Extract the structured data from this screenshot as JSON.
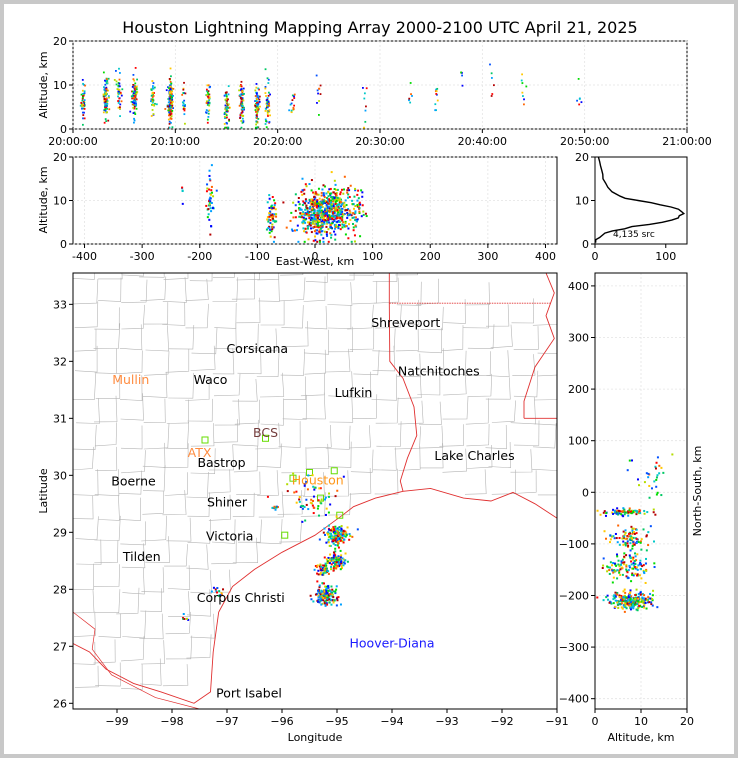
{
  "title": "Houston Lightning Mapping Array 2000-2100 UTC April 21, 2025",
  "colors": {
    "ramp": [
      "#0000ff",
      "#0050ff",
      "#00a0ff",
      "#00c8c8",
      "#00c864",
      "#00dc00",
      "#b4dc00",
      "#ffc800",
      "#ff6400",
      "#ff0000",
      "#b40000"
    ],
    "city": "#000000",
    "highlight_city": "#ff8c40",
    "radar_city": "#ff8c00",
    "buoy": "#1a1aff",
    "coast": "#e03030",
    "county": "#b4b4b4",
    "station": "#66dd00"
  },
  "chart_data": [
    {
      "id": "altitude-time",
      "type": "scatter",
      "ylabel": "Altitude, km",
      "ylim": [
        0,
        20
      ],
      "yticks": [
        "0",
        "10",
        "20"
      ],
      "xticks": [
        "20:00:00",
        "20:10:00",
        "20:20:00",
        "20:30:00",
        "20:40:00",
        "20:50:00",
        "21:00:00"
      ],
      "x_range_minutes": [
        0,
        60
      ],
      "clusters": [
        {
          "t": 1.0,
          "alt": 6.5,
          "n": 40
        },
        {
          "t": 3.2,
          "alt": 7.0,
          "n": 90
        },
        {
          "t": 4.5,
          "alt": 8.5,
          "n": 40
        },
        {
          "t": 6.0,
          "alt": 7.5,
          "n": 90
        },
        {
          "t": 7.8,
          "alt": 6.5,
          "n": 40
        },
        {
          "t": 9.5,
          "alt": 6.5,
          "n": 160
        },
        {
          "t": 10.8,
          "alt": 6.0,
          "n": 20
        },
        {
          "t": 13.2,
          "alt": 6.0,
          "n": 40
        },
        {
          "t": 15.0,
          "alt": 5.5,
          "n": 60
        },
        {
          "t": 16.5,
          "alt": 6.0,
          "n": 80
        },
        {
          "t": 18.0,
          "alt": 5.0,
          "n": 80
        },
        {
          "t": 19.0,
          "alt": 5.5,
          "n": 50
        },
        {
          "t": 21.5,
          "alt": 6.0,
          "n": 15
        },
        {
          "t": 24.0,
          "alt": 7.0,
          "n": 10
        },
        {
          "t": 28.5,
          "alt": 5.5,
          "n": 8
        },
        {
          "t": 33.0,
          "alt": 7.0,
          "n": 6
        },
        {
          "t": 35.5,
          "alt": 7.5,
          "n": 10
        },
        {
          "t": 38.0,
          "alt": 10.0,
          "n": 5
        },
        {
          "t": 41.0,
          "alt": 9.0,
          "n": 6
        },
        {
          "t": 44.0,
          "alt": 9.0,
          "n": 8
        },
        {
          "t": 49.5,
          "alt": 8.0,
          "n": 6
        }
      ]
    },
    {
      "id": "altitude-eastwest",
      "type": "scatter",
      "xlabel": "East-West, km",
      "ylabel": "Altitude, km",
      "xlim": [
        -420,
        420
      ],
      "ylim": [
        0,
        20
      ],
      "xticks": [
        "-400",
        "-300",
        "-200",
        "-100",
        "0",
        "100",
        "200",
        "300",
        "400"
      ],
      "yticks": [
        "0",
        "10",
        "20"
      ],
      "clusters": [
        {
          "x": 5,
          "alt": 7.0,
          "sx": 18,
          "n": 450
        },
        {
          "x": 40,
          "alt": 7.5,
          "sx": 12,
          "n": 220
        },
        {
          "x": 70,
          "alt": 8.0,
          "sx": 8,
          "n": 60
        },
        {
          "x": -75,
          "alt": 6.0,
          "sx": 4,
          "n": 60
        },
        {
          "x": -182,
          "alt": 10.0,
          "sx": 3,
          "n": 40
        },
        {
          "x": -230,
          "alt": 13.5,
          "sx": 2,
          "n": 5
        }
      ]
    },
    {
      "id": "altitude-histogram",
      "type": "line",
      "xlim": [
        0,
        130
      ],
      "ylim": [
        0,
        20
      ],
      "xticks": [
        "0",
        "100"
      ],
      "yticks": [
        "0",
        "10",
        "20"
      ],
      "source_count": "4,135 src",
      "profile": [
        [
          0.3,
          0
        ],
        [
          1.0,
          2
        ],
        [
          1.5,
          6
        ],
        [
          2.5,
          15
        ],
        [
          3.0,
          25
        ],
        [
          3.5,
          40
        ],
        [
          4.0,
          55
        ],
        [
          4.5,
          75
        ],
        [
          5.0,
          95
        ],
        [
          5.5,
          110
        ],
        [
          6.0,
          118
        ],
        [
          6.5,
          122
        ],
        [
          7.0,
          124
        ],
        [
          7.5,
          120
        ],
        [
          8.0,
          118
        ],
        [
          8.5,
          110
        ],
        [
          9.0,
          95
        ],
        [
          9.5,
          80
        ],
        [
          10.0,
          60
        ],
        [
          10.5,
          45
        ],
        [
          11.0,
          35
        ],
        [
          12.0,
          25
        ],
        [
          13.0,
          18
        ],
        [
          14.0,
          14
        ],
        [
          15.0,
          12
        ],
        [
          16.0,
          10
        ],
        [
          17.0,
          9
        ],
        [
          18.0,
          8
        ],
        [
          19.0,
          6
        ],
        [
          20.0,
          5
        ]
      ]
    },
    {
      "id": "plan-view",
      "type": "scatter",
      "xlabel": "Longitude",
      "ylabel": "Latitude",
      "xlim": [
        -99.8,
        -91.0
      ],
      "ylim": [
        25.9,
        33.55
      ],
      "xticks": [
        "−99",
        "−98",
        "−97",
        "−96",
        "−95",
        "−94",
        "−93",
        "−92",
        "−91"
      ],
      "yticks": [
        "26",
        "27",
        "28",
        "29",
        "30",
        "31",
        "32",
        "33"
      ],
      "cities": [
        {
          "name": "Shreveport",
          "lon": -93.75,
          "lat": 32.6,
          "style": "city"
        },
        {
          "name": "Corsicana",
          "lon": -96.45,
          "lat": 32.15,
          "style": "city"
        },
        {
          "name": "Natchitoches",
          "lon": -93.15,
          "lat": 31.75,
          "style": "city"
        },
        {
          "name": "Mullin",
          "lon": -98.75,
          "lat": 31.6,
          "style": "highlight"
        },
        {
          "name": "Waco",
          "lon": -97.3,
          "lat": 31.6,
          "style": "city"
        },
        {
          "name": "Lufkin",
          "lon": -94.7,
          "lat": 31.37,
          "style": "city"
        },
        {
          "name": "BCS",
          "lon": -96.3,
          "lat": 30.67,
          "style": "dim"
        },
        {
          "name": "ATX",
          "lon": -97.5,
          "lat": 30.32,
          "style": "highlight"
        },
        {
          "name": "Bastrop",
          "lon": -97.1,
          "lat": 30.15,
          "style": "city"
        },
        {
          "name": "Lake Charles",
          "lon": -92.5,
          "lat": 30.27,
          "style": "city"
        },
        {
          "name": "Houston",
          "lon": -95.35,
          "lat": 29.84,
          "style": "radar"
        },
        {
          "name": "Boerne",
          "lon": -98.7,
          "lat": 29.82,
          "style": "city"
        },
        {
          "name": "Shiner",
          "lon": -97.0,
          "lat": 29.45,
          "style": "city"
        },
        {
          "name": "Victoria",
          "lon": -96.95,
          "lat": 28.86,
          "style": "city"
        },
        {
          "name": "Tilden",
          "lon": -98.55,
          "lat": 28.5,
          "style": "city"
        },
        {
          "name": "Corpus Christi",
          "lon": -96.75,
          "lat": 27.78,
          "style": "city"
        },
        {
          "name": "Hoover-Diana",
          "lon": -94.0,
          "lat": 26.98,
          "style": "buoy"
        },
        {
          "name": "Port Isabel",
          "lon": -96.6,
          "lat": 26.1,
          "style": "city"
        }
      ],
      "stations": [
        {
          "lon": -97.4,
          "lat": 30.62
        },
        {
          "lon": -96.3,
          "lat": 30.65
        },
        {
          "lon": -95.8,
          "lat": 29.95
        },
        {
          "lon": -95.5,
          "lat": 30.05
        },
        {
          "lon": -95.05,
          "lat": 30.08
        },
        {
          "lon": -95.3,
          "lat": 29.6
        },
        {
          "lon": -95.95,
          "lat": 28.95
        },
        {
          "lon": -94.95,
          "lat": 29.3
        }
      ],
      "clusters": [
        {
          "lon": -95.0,
          "lat": 28.95,
          "s": 0.1,
          "n": 160
        },
        {
          "lon": -95.0,
          "lat": 28.5,
          "s": 0.08,
          "n": 110
        },
        {
          "lon": -95.2,
          "lat": 27.9,
          "s": 0.1,
          "n": 160
        },
        {
          "lon": -95.25,
          "lat": 28.35,
          "s": 0.08,
          "n": 50
        },
        {
          "lon": -95.5,
          "lat": 29.55,
          "s": 0.25,
          "n": 60
        },
        {
          "lon": -96.15,
          "lat": 29.42,
          "s": 0.03,
          "n": 12
        },
        {
          "lon": -97.15,
          "lat": 27.95,
          "s": 0.05,
          "n": 12
        },
        {
          "lon": -97.75,
          "lat": 27.5,
          "s": 0.03,
          "n": 6
        }
      ]
    },
    {
      "id": "northsouth-altitude",
      "type": "scatter",
      "xlabel": "Altitude, km",
      "ylabel": "North-South, km",
      "xlim": [
        0,
        20
      ],
      "ylim": [
        -420,
        425
      ],
      "xticks": [
        "0",
        "10",
        "20"
      ],
      "yticks": [
        "−400",
        "−300",
        "−200",
        "−100",
        "0",
        "100",
        "200",
        "300",
        "400"
      ],
      "clusters": [
        {
          "ns": -38,
          "alt": 6.5,
          "sy": 3,
          "n": 80
        },
        {
          "ns": -90,
          "alt": 7.5,
          "sy": 10,
          "n": 90
        },
        {
          "ns": -145,
          "alt": 7.0,
          "sy": 12,
          "n": 120
        },
        {
          "ns": -210,
          "alt": 8.0,
          "sy": 8,
          "n": 240
        },
        {
          "ns": 30,
          "alt": 12.0,
          "sy": 20,
          "n": 30
        }
      ]
    }
  ]
}
